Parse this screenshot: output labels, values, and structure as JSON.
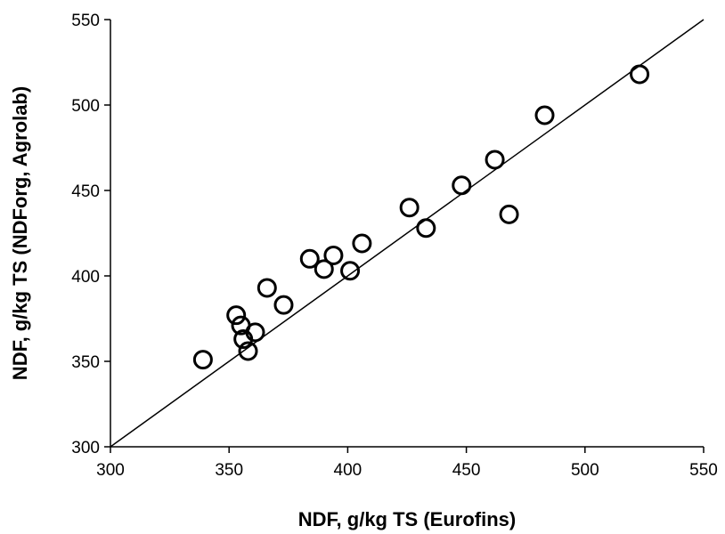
{
  "chart_data": {
    "type": "scatter",
    "title": "",
    "xlabel": "NDF, g/kg TS (Eurofins)",
    "ylabel": "NDF, g/kg TS (NDForg, Agrolab)",
    "xlim": [
      300,
      550
    ],
    "ylim": [
      300,
      550
    ],
    "xticks": [
      "300",
      "350",
      "400",
      "450",
      "500",
      "550"
    ],
    "yticks": [
      "300",
      "350",
      "400",
      "450",
      "500",
      "550"
    ],
    "grid": false,
    "legend": "none",
    "reference_line": {
      "type": "1:1",
      "from": [
        300,
        300
      ],
      "to": [
        550,
        550
      ]
    },
    "series": [
      {
        "marker": "open-circle",
        "color": "#000000",
        "points": [
          {
            "x": 339,
            "y": 351
          },
          {
            "x": 353,
            "y": 377
          },
          {
            "x": 355,
            "y": 371
          },
          {
            "x": 356,
            "y": 363
          },
          {
            "x": 358,
            "y": 356
          },
          {
            "x": 361,
            "y": 367
          },
          {
            "x": 366,
            "y": 393
          },
          {
            "x": 373,
            "y": 383
          },
          {
            "x": 384,
            "y": 410
          },
          {
            "x": 390,
            "y": 404
          },
          {
            "x": 394,
            "y": 412
          },
          {
            "x": 401,
            "y": 403
          },
          {
            "x": 406,
            "y": 419
          },
          {
            "x": 426,
            "y": 440
          },
          {
            "x": 433,
            "y": 428
          },
          {
            "x": 448,
            "y": 453
          },
          {
            "x": 462,
            "y": 468
          },
          {
            "x": 468,
            "y": 436
          },
          {
            "x": 483,
            "y": 494
          },
          {
            "x": 523,
            "y": 518
          }
        ]
      }
    ]
  }
}
